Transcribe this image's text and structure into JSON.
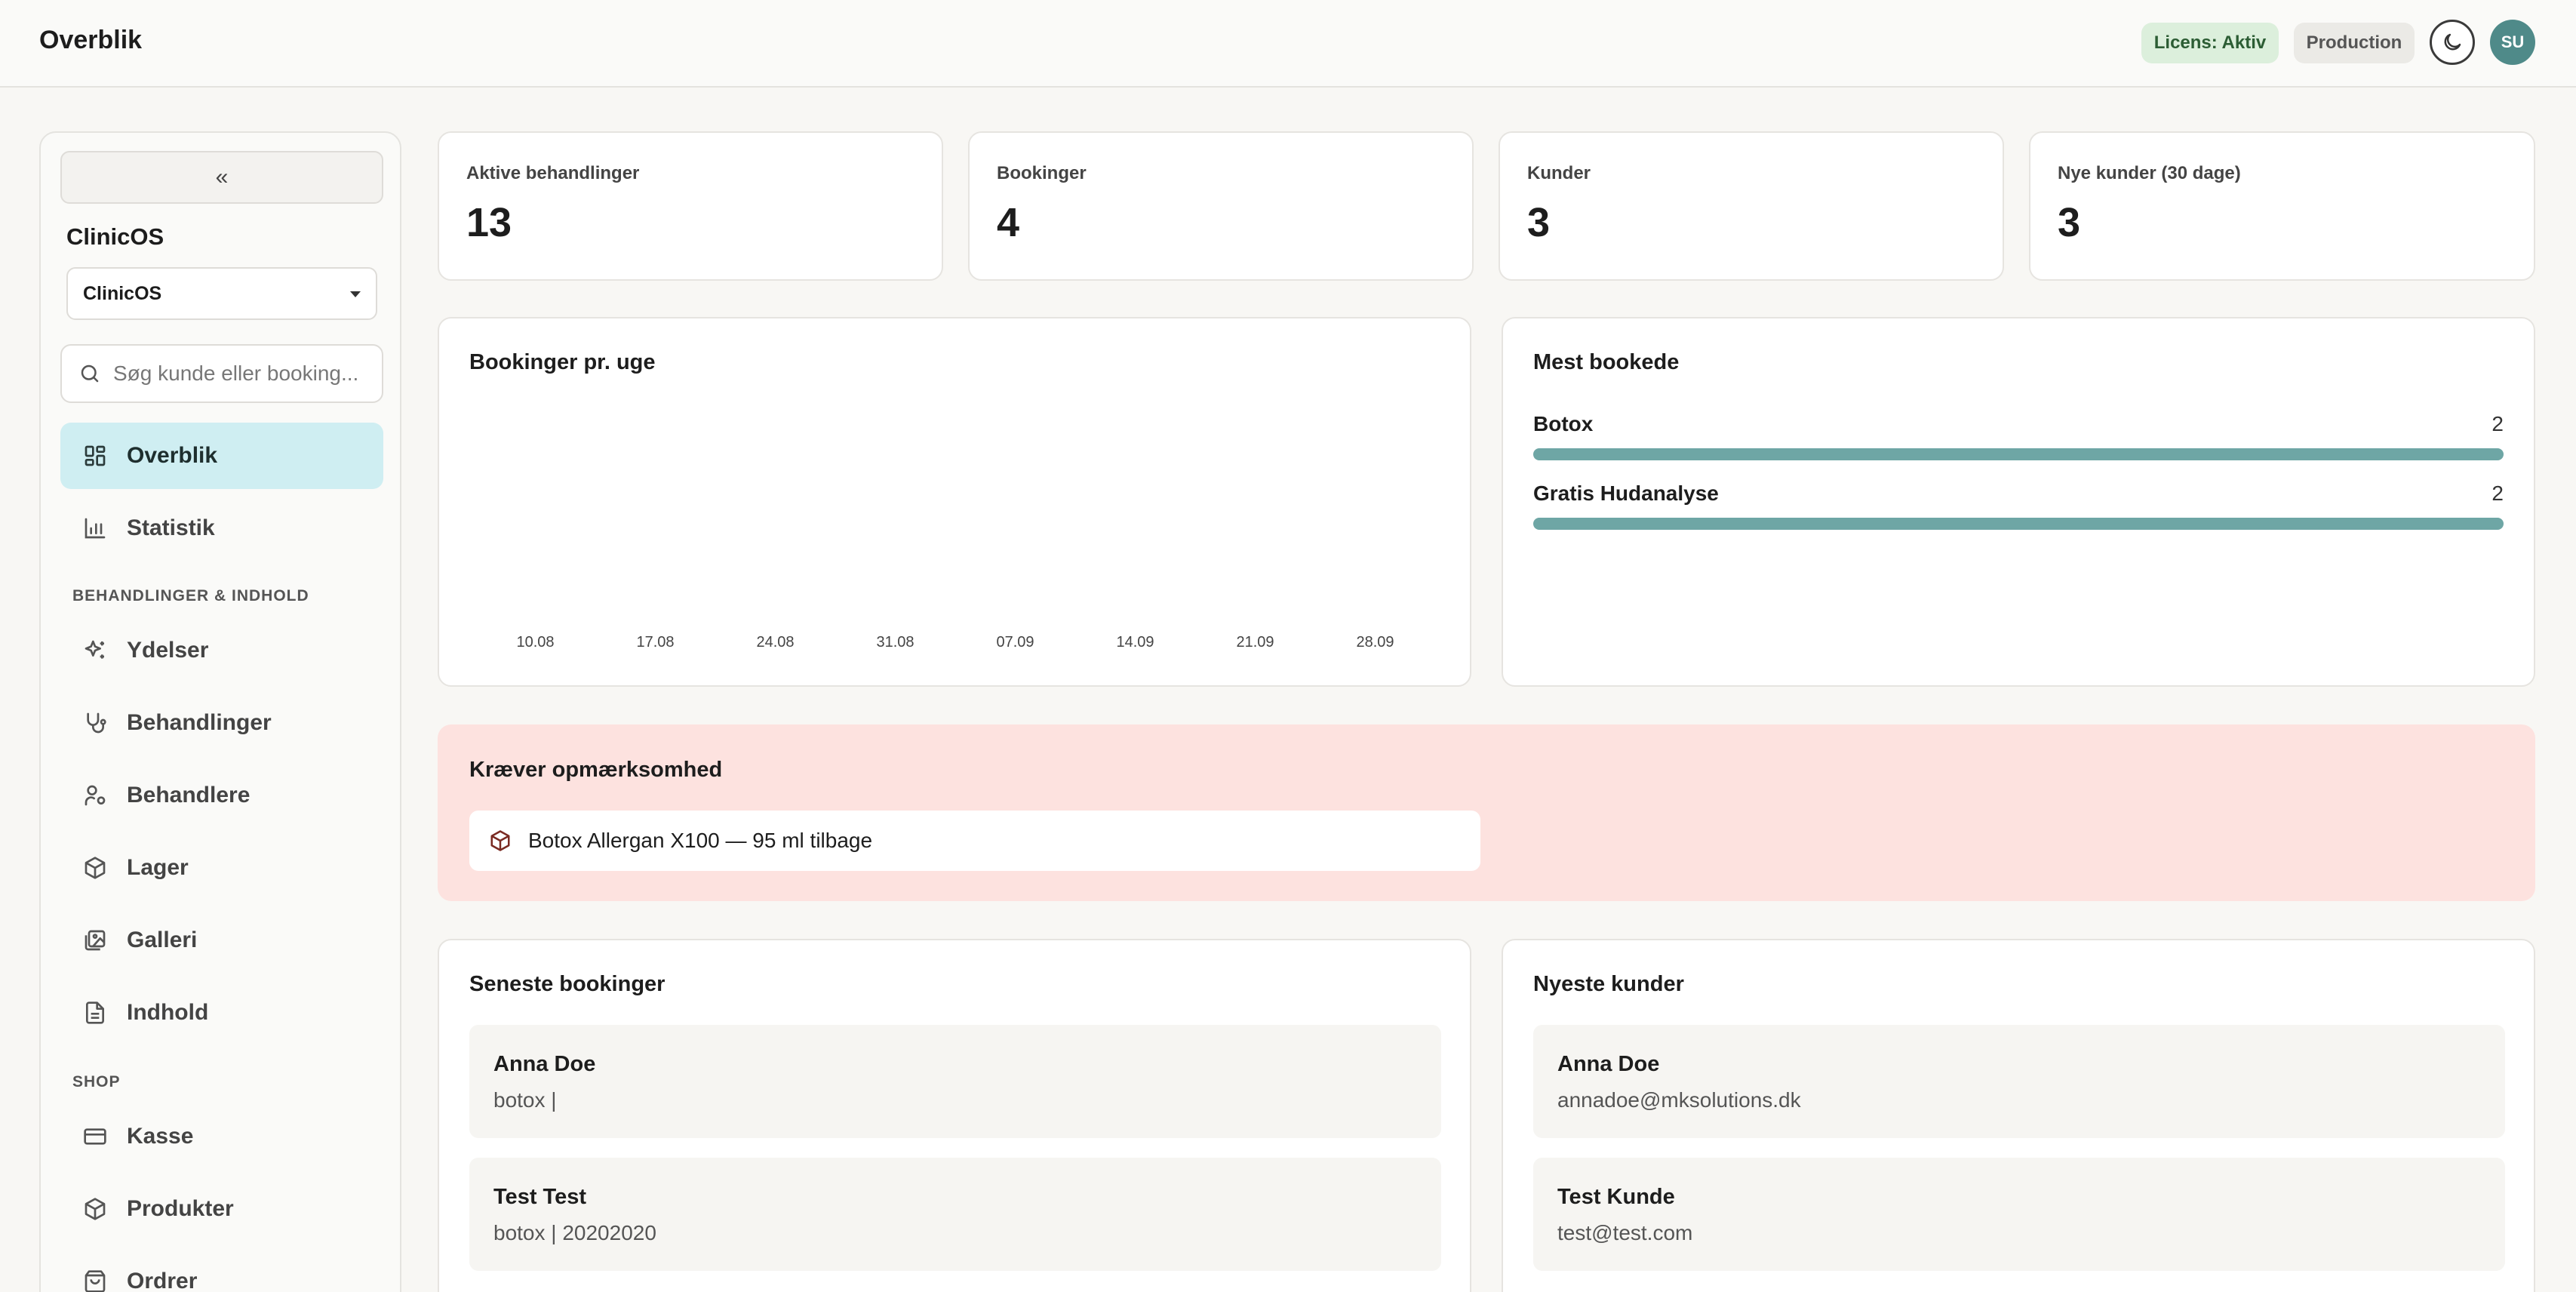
{
  "header": {
    "title": "Overblik",
    "license_badge": "Licens: Aktiv",
    "env_badge": "Production",
    "avatar_initials": "SU"
  },
  "sidebar": {
    "collapse_label": "«",
    "brand": "ClinicOS",
    "clinic_select": "ClinicOS",
    "search_placeholder": "Søg kunde eller booking...",
    "nav_top": [
      {
        "label": "Overblik",
        "icon": "dashboard-icon",
        "active": true
      },
      {
        "label": "Statistik",
        "icon": "bar-chart-icon",
        "active": false
      }
    ],
    "section_treatments": "BEHANDLINGER & INDHOLD",
    "nav_treatments": [
      {
        "label": "Ydelser",
        "icon": "sparkles-icon"
      },
      {
        "label": "Behandlinger",
        "icon": "stethoscope-icon"
      },
      {
        "label": "Behandlere",
        "icon": "user-cog-icon"
      },
      {
        "label": "Lager",
        "icon": "package-icon"
      },
      {
        "label": "Galleri",
        "icon": "gallery-icon"
      },
      {
        "label": "Indhold",
        "icon": "document-icon"
      }
    ],
    "section_shop": "SHOP",
    "nav_shop": [
      {
        "label": "Kasse",
        "icon": "credit-card-icon"
      },
      {
        "label": "Produkter",
        "icon": "package-icon"
      },
      {
        "label": "Ordrer",
        "icon": "shopping-bag-icon"
      }
    ]
  },
  "stats": [
    {
      "label": "Aktive behandlinger",
      "value": "13"
    },
    {
      "label": "Bookinger",
      "value": "4"
    },
    {
      "label": "Kunder",
      "value": "3"
    },
    {
      "label": "Nye kunder (30 dage)",
      "value": "3"
    }
  ],
  "bookings_chart": {
    "title": "Bookinger pr. uge"
  },
  "chart_data": {
    "type": "bar",
    "categories": [
      "10.08",
      "17.08",
      "24.08",
      "31.08",
      "07.09",
      "14.09",
      "21.09",
      "28.09"
    ],
    "values": [
      0,
      0,
      0,
      0,
      0,
      0,
      0,
      0
    ],
    "title": "Bookinger pr. uge",
    "xlabel": "",
    "ylabel": "",
    "grid": false
  },
  "most_booked": {
    "title": "Mest bookede",
    "items": [
      {
        "name": "Botox",
        "count": "2",
        "fraction": 1.0
      },
      {
        "name": "Gratis Hudanalyse",
        "count": "2",
        "fraction": 1.0
      }
    ]
  },
  "attention": {
    "title": "Kræver opmærksomhed",
    "items": [
      {
        "text": "Botox Allergan X100 — 95 ml tilbage",
        "icon": "package-icon"
      }
    ]
  },
  "recent_bookings": {
    "title": "Seneste bookinger",
    "items": [
      {
        "name": "Anna Doe",
        "detail": "botox |"
      },
      {
        "name": "Test Test",
        "detail": "botox | 20202020"
      }
    ]
  },
  "newest_customers": {
    "title": "Nyeste kunder",
    "items": [
      {
        "name": "Anna Doe",
        "detail": "annadoe@mksolutions.dk"
      },
      {
        "name": "Test Kunde",
        "detail": "test@test.com"
      }
    ]
  },
  "colors": {
    "accent": "#6ea6a5",
    "active_nav": "#cfeef2",
    "alert_bg": "#fde2df",
    "avatar": "#4f8a89",
    "license_bg": "#dcefdc"
  }
}
